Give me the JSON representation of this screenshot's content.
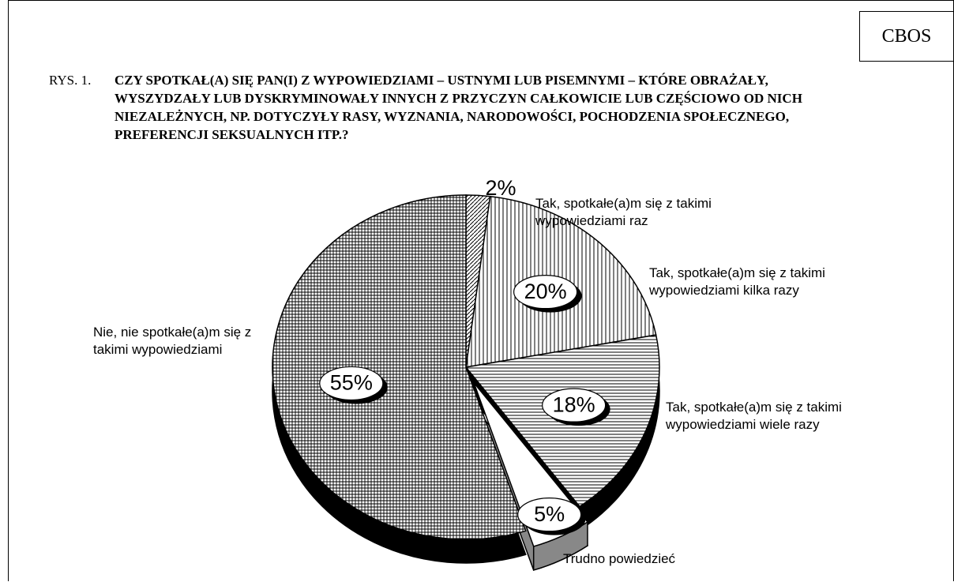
{
  "chart_data": {
    "type": "pie",
    "source": "CBOS",
    "figure_label": "RYS. 1.",
    "title": "CZY SPOTKAŁ(A) SIĘ PAN(I) Z WYPOWIEDZIAMI – USTNYMI LUB PISEMNYMI – KTÓRE OBRAŻAŁY, WYSZYDZAŁY LUB DYSKRYMINOWAŁY INNYCH Z PRZYCZYN CAŁKOWICIE LUB CZĘŚCIOWO OD NICH NIEZALEŻNYCH, NP. DOTYCZYŁY RASY, WYZNANIA, NARODOWOŚCI, POCHODZENIA SPOŁECZNEGO, PREFERENCJI SEKSUALNYCH ITP.?",
    "categories": [
      "Tak, spotkałe(a)m się z takimi wypowiedziami raz",
      "Tak, spotkałe(a)m się z takimi wypowiedziami kilka razy",
      "Tak, spotkałe(a)m się z takimi wypowiedziami wiele razy",
      "Trudno powiedzieć",
      "Nie, nie spotkałe(a)m się z takimi wypowiedziami"
    ],
    "values": [
      2,
      20,
      18,
      5,
      55
    ],
    "value_labels": [
      "2%",
      "20%",
      "18%",
      "5%",
      "55%"
    ],
    "patterns": [
      "diagonal",
      "vertical",
      "horizontal",
      "white",
      "grid"
    ],
    "exploded": [
      false,
      false,
      false,
      true,
      false
    ]
  }
}
